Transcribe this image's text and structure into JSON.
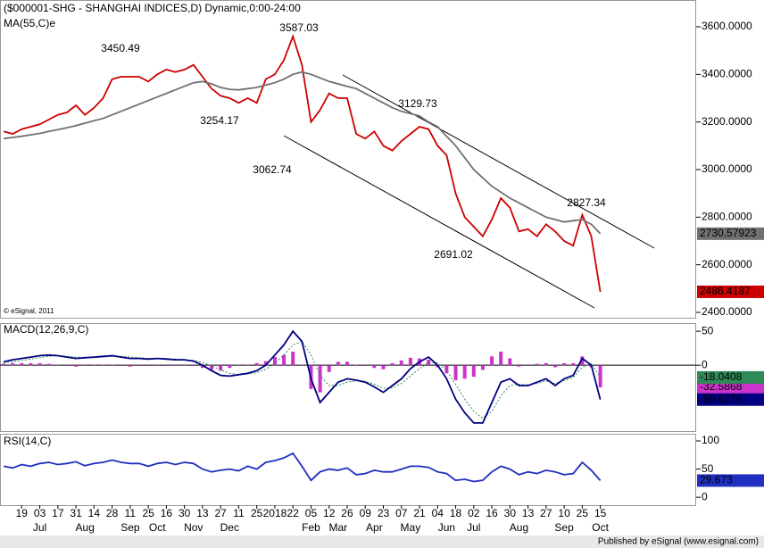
{
  "footer": "Published by eSignal (www.esignal.com)",
  "chart_data": [
    {
      "type": "line",
      "title": "($000001-SHG - SHANGHAI INDICES,D) Dynamic,0:00-24:00",
      "credit": "© eSignal, 2011",
      "annotations": [
        "3450.49",
        "3587.03",
        "3254.17",
        "3062.74",
        "3129.73",
        "2827.34",
        "2691.02"
      ],
      "ylim": [
        2373.75,
        3712.5
      ],
      "yticks": [
        {
          "value": 3600,
          "label": "3600.0000"
        },
        {
          "value": 3400,
          "label": "3400.0000"
        },
        {
          "value": 3200,
          "label": "3200.0000"
        },
        {
          "value": 3000,
          "label": "3000.0000"
        },
        {
          "value": 2800,
          "label": "2800.0000"
        },
        {
          "value": 2600,
          "label": "2600.0000"
        },
        {
          "value": 2400,
          "label": "2400.0000"
        }
      ],
      "series": [
        {
          "color": "#cc0000",
          "label_box": true,
          "box_text": "#ffffff",
          "values": [
            3160,
            3150,
            3170,
            3180,
            3190,
            3210,
            3230,
            3240,
            3270,
            3230,
            3260,
            3300,
            3380,
            3390,
            3390,
            3390,
            3370,
            3400,
            3420,
            3410,
            3420,
            3440,
            3390,
            3340,
            3310,
            3300,
            3280,
            3300,
            3280,
            3380,
            3400,
            3460,
            3560,
            3440,
            3200,
            3250,
            3320,
            3300,
            3300,
            3150,
            3130,
            3160,
            3100,
            3080,
            3120,
            3150,
            3180,
            3170,
            3100,
            3060,
            2900,
            2800,
            2760,
            2720,
            2790,
            2880,
            2840,
            2740,
            2750,
            2720,
            2770,
            2740,
            2700,
            2680,
            2810,
            2720,
            2486.4187
          ]
        },
        {
          "name": "MA(55,C)e",
          "color": "#707070",
          "label_box": true,
          "box_text": "#000000",
          "values": [
            3130,
            3135,
            3140,
            3146,
            3152,
            3160,
            3168,
            3176,
            3185,
            3195,
            3205,
            3215,
            3230,
            3245,
            3260,
            3275,
            3290,
            3305,
            3320,
            3335,
            3350,
            3365,
            3370,
            3360,
            3345,
            3337,
            3335,
            3340,
            3345,
            3355,
            3365,
            3380,
            3400,
            3410,
            3400,
            3385,
            3370,
            3360,
            3350,
            3340,
            3320,
            3300,
            3280,
            3260,
            3245,
            3235,
            3225,
            3200,
            3180,
            3140,
            3100,
            3050,
            3000,
            2965,
            2930,
            2905,
            2880,
            2860,
            2840,
            2820,
            2800,
            2790,
            2780,
            2785,
            2790,
            2770,
            2730.57923
          ]
        }
      ]
    },
    {
      "type": "line",
      "title": "MACD(12,26,9,C)",
      "ylim": [
        -97,
        62
      ],
      "yticks": [
        50,
        0
      ],
      "zero_line": true,
      "series": [
        {
          "type": "bar",
          "color": "#cc33cc",
          "label_box": true,
          "box_text": "#ffffff",
          "values": [
            2,
            3,
            3,
            3,
            3,
            2,
            0,
            -1,
            -2,
            0,
            1,
            1,
            1,
            -1,
            -2,
            -1,
            -1,
            0,
            -1,
            -1,
            0,
            -1,
            -4,
            -7,
            -8,
            -4,
            0,
            1,
            3,
            6,
            12,
            15,
            20,
            0,
            -35,
            -40,
            -10,
            5,
            5,
            1,
            -1,
            -4,
            -6,
            3,
            7,
            11,
            10,
            8,
            -3,
            -12,
            -22,
            -20,
            -17,
            -7,
            13,
            20,
            10,
            -2,
            -1,
            2,
            3,
            -3,
            3,
            3,
            13,
            -3,
            -32.5868
          ]
        },
        {
          "color": "#2e8b57",
          "dash": true,
          "label_box": true,
          "box_text": "#000000",
          "values": [
            3,
            5,
            7,
            9,
            11,
            13,
            14,
            13,
            12,
            11,
            11,
            12,
            13,
            13,
            12,
            11,
            10,
            10,
            10,
            9,
            8,
            7,
            4,
            -1,
            -7,
            -12,
            -14,
            -13,
            -11,
            -6,
            3,
            15,
            30,
            35,
            15,
            -15,
            -30,
            -30,
            -25,
            -23,
            -24,
            -28,
            -34,
            -33,
            -27,
            -16,
            -5,
            4,
            3,
            -8,
            -28,
            -50,
            -68,
            -78,
            -68,
            -45,
            -30,
            -28,
            -29,
            -27,
            -23,
            -27,
            -23,
            -18,
            -3,
            3,
            -18.0408
          ]
        },
        {
          "color": "#000080",
          "label_box": true,
          "box_text": "#ffffff",
          "values": [
            5,
            8,
            10,
            12,
            14,
            15,
            14,
            12,
            10,
            11,
            12,
            13,
            14,
            12,
            10,
            10,
            9,
            10,
            9,
            8,
            8,
            6,
            0,
            -8,
            -15,
            -16,
            -14,
            -12,
            -8,
            0,
            15,
            30,
            50,
            35,
            -20,
            -55,
            -40,
            -25,
            -20,
            -22,
            -25,
            -32,
            -40,
            -30,
            -20,
            -5,
            5,
            12,
            0,
            -20,
            -50,
            -70,
            -85,
            -85,
            -55,
            -25,
            -20,
            -30,
            -30,
            -25,
            -20,
            -30,
            -20,
            -15,
            10,
            0,
            -50.6276
          ]
        }
      ]
    },
    {
      "type": "line",
      "title": "RSI(14,C)",
      "ylim": [
        -14,
        112.7
      ],
      "yticks": [
        100,
        50,
        0
      ],
      "xlim": [
        -0.4,
        76.6
      ],
      "xticks": [
        {
          "value": 2,
          "label": "19"
        },
        {
          "value": 4,
          "label": "03"
        },
        {
          "value": 6,
          "label": "17"
        },
        {
          "value": 8,
          "label": "31"
        },
        {
          "value": 10,
          "label": "14"
        },
        {
          "value": 12,
          "label": "28"
        },
        {
          "value": 14,
          "label": "11"
        },
        {
          "value": 16,
          "label": "25"
        },
        {
          "value": 18,
          "label": "16"
        },
        {
          "value": 20,
          "label": "30"
        },
        {
          "value": 22,
          "label": "13"
        },
        {
          "value": 24,
          "label": "27"
        },
        {
          "value": 26,
          "label": "11"
        },
        {
          "value": 28,
          "label": "25"
        },
        {
          "value": 30,
          "label": "2018"
        },
        {
          "value": 32,
          "label": "22"
        },
        {
          "value": 34,
          "label": "05"
        },
        {
          "value": 36,
          "label": "12"
        },
        {
          "value": 38,
          "label": "26"
        },
        {
          "value": 40,
          "label": "09"
        },
        {
          "value": 42,
          "label": "23"
        },
        {
          "value": 44,
          "label": "07"
        },
        {
          "value": 46,
          "label": "21"
        },
        {
          "value": 48,
          "label": "04"
        },
        {
          "value": 50,
          "label": "18"
        },
        {
          "value": 52,
          "label": "02"
        },
        {
          "value": 54,
          "label": "16"
        },
        {
          "value": 56,
          "label": "30"
        },
        {
          "value": 58,
          "label": "13"
        },
        {
          "value": 60,
          "label": "27"
        },
        {
          "value": 62,
          "label": "10"
        },
        {
          "value": 64,
          "label": "25"
        },
        {
          "value": 66,
          "label": "15"
        }
      ],
      "month_ticks": [
        {
          "value": 4,
          "label": "Jul"
        },
        {
          "value": 9,
          "label": "Aug"
        },
        {
          "value": 14,
          "label": "Sep"
        },
        {
          "value": 17,
          "label": "Oct"
        },
        {
          "value": 21,
          "label": "Nov"
        },
        {
          "value": 25,
          "label": "Dec"
        },
        {
          "value": 34,
          "label": "Feb"
        },
        {
          "value": 37,
          "label": "Mar"
        },
        {
          "value": 41,
          "label": "Apr"
        },
        {
          "value": 45,
          "label": "May"
        },
        {
          "value": 49,
          "label": "Jun"
        },
        {
          "value": 52,
          "label": "Jul"
        },
        {
          "value": 57,
          "label": "Aug"
        },
        {
          "value": 62,
          "label": "Sep"
        },
        {
          "value": 66,
          "label": "Oct"
        }
      ],
      "series": [
        {
          "color": "#1f2fbf",
          "label_box": true,
          "box_text": "#ffffff",
          "values": [
            55,
            52,
            58,
            55,
            60,
            62,
            58,
            60,
            63,
            56,
            60,
            62,
            66,
            62,
            60,
            60,
            55,
            60,
            62,
            58,
            62,
            60,
            50,
            45,
            48,
            50,
            47,
            55,
            50,
            62,
            65,
            70,
            78,
            55,
            30,
            45,
            50,
            48,
            52,
            40,
            42,
            48,
            45,
            45,
            50,
            55,
            55,
            53,
            45,
            42,
            30,
            32,
            28,
            30,
            45,
            55,
            50,
            40,
            45,
            42,
            48,
            45,
            40,
            42,
            62,
            48,
            29.673
          ]
        }
      ]
    }
  ]
}
